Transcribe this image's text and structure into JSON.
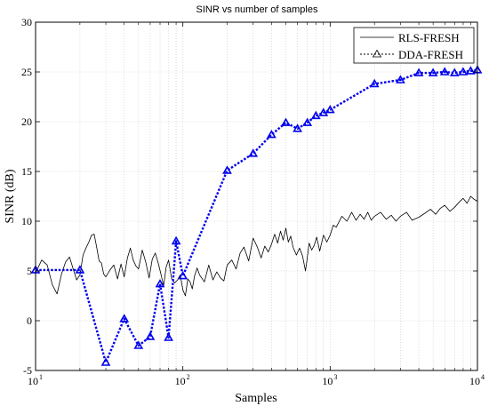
{
  "chart_data": {
    "type": "line",
    "title": "SINR vs number of samples",
    "xlabel": "Samples",
    "ylabel": "SINR (dB)",
    "xscale": "log",
    "xlim": [
      10,
      10000
    ],
    "ylim": [
      -5,
      30
    ],
    "x_tick_bases": [
      "10",
      "10",
      "10",
      "10"
    ],
    "x_tick_exponents": [
      "1",
      "2",
      "3",
      "4"
    ],
    "x_tick_values": [
      10,
      100,
      1000,
      10000
    ],
    "y_ticks": [
      -5,
      0,
      5,
      10,
      15,
      20,
      25,
      30
    ],
    "grid": true,
    "legend_position": "top-right",
    "series": [
      {
        "name": "RLS-FRESH",
        "style": "solid",
        "marker": "none",
        "color": "#000000",
        "x": [
          10,
          11,
          12,
          13,
          14,
          15,
          16,
          17,
          18,
          19,
          20,
          21,
          22,
          23,
          24,
          25,
          26,
          27,
          28,
          29,
          30,
          32,
          34,
          36,
          38,
          40,
          42,
          44,
          46,
          48,
          50,
          53,
          56,
          59,
          62,
          65,
          68,
          71,
          74,
          77,
          80,
          84,
          88,
          92,
          96,
          100,
          104,
          108,
          112,
          116,
          120,
          125,
          130,
          140,
          150,
          160,
          170,
          180,
          190,
          200,
          215,
          230,
          245,
          260,
          280,
          300,
          320,
          340,
          360,
          380,
          400,
          420,
          440,
          460,
          480,
          500,
          520,
          540,
          560,
          590,
          620,
          650,
          680,
          700,
          720,
          750,
          780,
          810,
          850,
          900,
          950,
          1000,
          1050,
          1100,
          1200,
          1300,
          1400,
          1500,
          1600,
          1700,
          1800,
          1900,
          2000,
          2200,
          2400,
          2600,
          2800,
          3000,
          3300,
          3600,
          4000,
          4400,
          4800,
          5200,
          5600,
          6000,
          6500,
          7000,
          7500,
          8000,
          8500,
          9000,
          9500,
          10000
        ],
        "y": [
          4.8,
          6.1,
          5.6,
          3.6,
          2.7,
          4.7,
          5.9,
          6.4,
          5.2,
          4.1,
          4.6,
          6.6,
          7.3,
          7.9,
          8.6,
          8.7,
          7.4,
          6.0,
          5.8,
          4.7,
          4.4,
          5.1,
          5.6,
          4.2,
          5.7,
          4.4,
          6.3,
          7.3,
          6.1,
          5.5,
          5.2,
          7.1,
          5.9,
          4.3,
          6.2,
          6.8,
          5.8,
          4.7,
          3.5,
          5.4,
          6.1,
          4.2,
          3.8,
          4.1,
          4.6,
          3.1,
          2.5,
          4.2,
          3.9,
          3.2,
          4.5,
          5.3,
          4.6,
          3.9,
          5.6,
          4.1,
          4.9,
          4.3,
          4.0,
          5.6,
          6.1,
          5.2,
          6.8,
          7.4,
          6.0,
          8.3,
          7.4,
          6.3,
          7.5,
          6.9,
          7.7,
          8.7,
          7.8,
          9.0,
          8.1,
          9.3,
          7.9,
          8.5,
          7.4,
          6.6,
          7.3,
          6.5,
          5.0,
          6.4,
          7.8,
          7.1,
          7.6,
          8.4,
          7.0,
          8.6,
          7.9,
          8.6,
          9.6,
          9.4,
          10.5,
          10.0,
          10.9,
          10.1,
          10.7,
          10.2,
          10.9,
          10.1,
          10.5,
          10.9,
          10.2,
          10.6,
          10.0,
          10.5,
          10.9,
          10.1,
          10.4,
          10.8,
          11.2,
          10.7,
          11.3,
          11.6,
          11.0,
          11.4,
          11.9,
          12.3,
          11.8,
          12.5,
          12.2,
          12.0
        ]
      },
      {
        "name": "DDA-FRESH",
        "style": "dotted",
        "marker": "triangle",
        "color": "#0000ee",
        "x": [
          10,
          20,
          30,
          40,
          50,
          60,
          70,
          80,
          90,
          100,
          200,
          300,
          400,
          500,
          600,
          700,
          800,
          900,
          1000,
          2000,
          3000,
          4000,
          5000,
          6000,
          7000,
          8000,
          9000,
          10000
        ],
        "y": [
          5.1,
          5.1,
          -4.2,
          0.2,
          -2.5,
          -1.6,
          3.7,
          -1.7,
          8.0,
          4.5,
          15.1,
          16.8,
          18.7,
          19.9,
          19.3,
          19.9,
          20.6,
          20.9,
          21.2,
          23.8,
          24.2,
          24.9,
          24.9,
          25.0,
          24.9,
          25.0,
          25.1,
          25.2
        ]
      }
    ]
  }
}
